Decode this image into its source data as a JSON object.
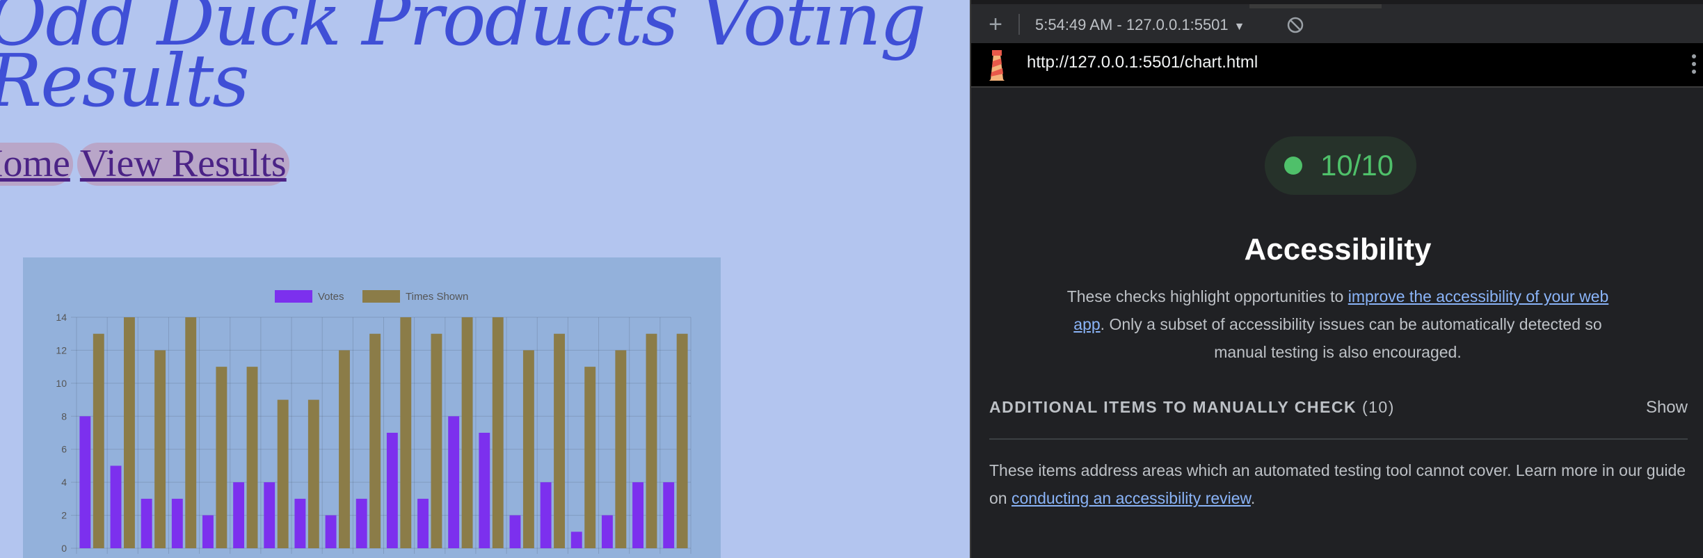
{
  "page": {
    "title": "Odd Duck Products Voting Results",
    "nav": [
      {
        "label": "Home"
      },
      {
        "label": "View Results"
      }
    ]
  },
  "chart_data": {
    "type": "bar",
    "categories": [
      "",
      "",
      "",
      "",
      "",
      "",
      "",
      "",
      "",
      "",
      "",
      "",
      "",
      "",
      "",
      "",
      "",
      "",
      "",
      ""
    ],
    "series": [
      {
        "name": "Votes",
        "color": "#7c30ee",
        "values": [
          8,
          5,
          3,
          3,
          2,
          4,
          4,
          3,
          2,
          3,
          7,
          3,
          8,
          7,
          2,
          4,
          1,
          2,
          4,
          4
        ]
      },
      {
        "name": "Times Shown",
        "color": "#8b7c48",
        "values": [
          13,
          14,
          12,
          14,
          11,
          11,
          9,
          9,
          12,
          13,
          14,
          13,
          14,
          14,
          12,
          13,
          11,
          12,
          13,
          13
        ]
      }
    ],
    "y_ticks": [
      "0",
      "2",
      "4",
      "6",
      "8",
      "10",
      "12",
      "14"
    ],
    "ylim": [
      0,
      14
    ],
    "grid": true,
    "legend": "top-center",
    "title": "",
    "xlabel": "",
    "ylabel": ""
  },
  "devtools": {
    "report_label": "5:54:49 AM - 127.0.0.1:5501",
    "url": "http://127.0.0.1:5501/chart.html",
    "score": "10/10",
    "score_color": "#4fc06a",
    "category": "Accessibility",
    "description": {
      "before": "These checks highlight opportunities to ",
      "link": "improve the accessibility of your web app",
      "after": ". Only a subset of accessibility issues can be automatically detected so manual testing is also encouraged."
    },
    "manual": {
      "title": "ADDITIONAL ITEMS TO MANUALLY CHECK",
      "count": "(10)",
      "toggle": "Show",
      "desc_before": "These items address areas which an automated testing tool cannot cover. Learn more in our guide on ",
      "desc_link": "conducting an accessibility review",
      "desc_after": "."
    }
  }
}
